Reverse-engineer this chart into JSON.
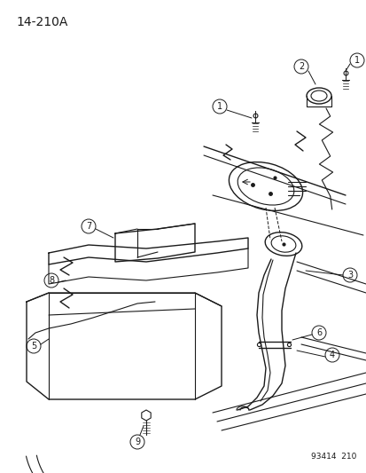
{
  "diagram_id": "14-210A",
  "footer_text": "93414  210",
  "bg_color": "#ffffff",
  "line_color": "#1a1a1a",
  "label_color": "#1a1a1a",
  "figsize": [
    4.14,
    5.33
  ],
  "dpi": 100,
  "title_fontsize": 10,
  "footer_fontsize": 6.5,
  "callout_fontsize": 7.0
}
